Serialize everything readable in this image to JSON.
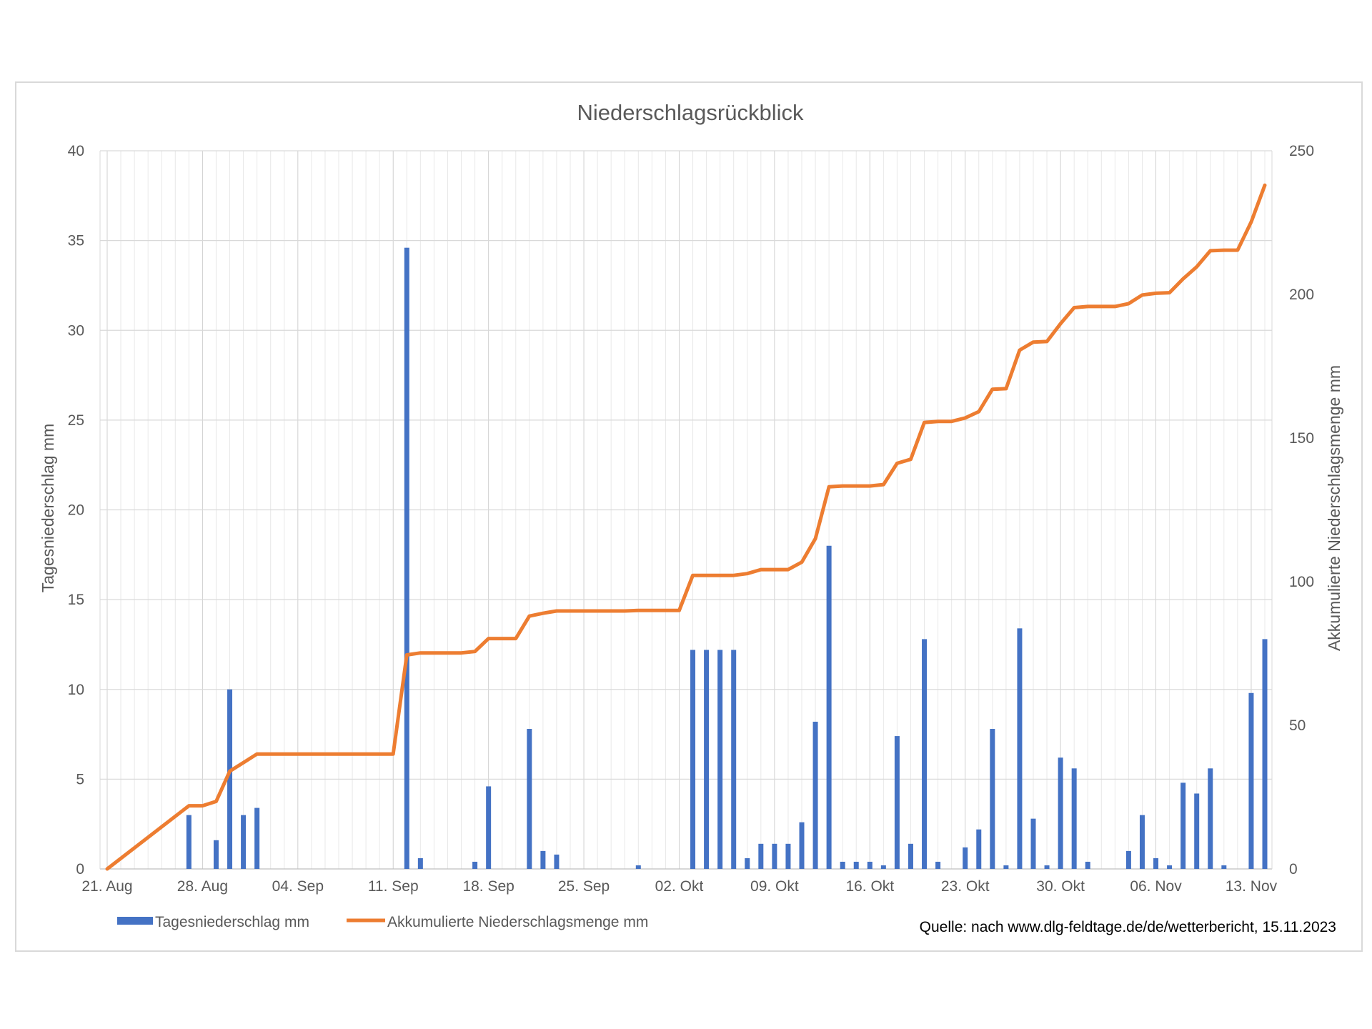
{
  "chart_data": {
    "type": "bar+line",
    "title": "Niederschlagsrückblick",
    "ylabel": "Tagesniederschlag mm",
    "y2label": "Akkumulierte Niederschlagsmenge mm",
    "ylim": [
      0,
      40
    ],
    "yticks": [
      0,
      5,
      10,
      15,
      20,
      25,
      30,
      35,
      40
    ],
    "y2lim": [
      0,
      250
    ],
    "y2ticks": [
      0,
      50,
      100,
      150,
      200,
      250
    ],
    "xlim": [
      "2023-08-21",
      "2023-11-15"
    ],
    "x_tick_dates": [
      "2023-08-21",
      "2023-08-28",
      "2023-09-04",
      "2023-09-11",
      "2023-09-18",
      "2023-09-25",
      "2023-10-02",
      "2023-10-09",
      "2023-10-16",
      "2023-10-23",
      "2023-10-30",
      "2023-11-06",
      "2023-11-13"
    ],
    "x_tick_labels": [
      "21. Aug",
      "28. Aug",
      "04. Sep",
      "11. Sep",
      "18. Sep",
      "25. Sep",
      "02. Okt",
      "09. Okt",
      "16. Okt",
      "23. Okt",
      "30. Okt",
      "06. Nov",
      "13. Nov"
    ],
    "grid": true,
    "legend": "bottom",
    "source_text": "Quelle: nach www.dlg-feldtage.de/de/wetterbericht, 15.11.2023",
    "series": [
      {
        "name": "Tagesniederschlag mm",
        "kind": "bar",
        "axis": "left",
        "color": "#4472c4",
        "points": [
          [
            "2023-08-27",
            3.0
          ],
          [
            "2023-08-29",
            1.6
          ],
          [
            "2023-08-30",
            10.0
          ],
          [
            "2023-08-31",
            3.0
          ],
          [
            "2023-09-01",
            3.4
          ],
          [
            "2023-09-12",
            34.6
          ],
          [
            "2023-09-13",
            0.6
          ],
          [
            "2023-09-17",
            0.4
          ],
          [
            "2023-09-18",
            4.6
          ],
          [
            "2023-09-21",
            7.8
          ],
          [
            "2023-09-22",
            1.0
          ],
          [
            "2023-09-23",
            0.8
          ],
          [
            "2023-09-29",
            0.2
          ],
          [
            "2023-10-03",
            12.2
          ],
          [
            "2023-10-04",
            12.2
          ],
          [
            "2023-10-05",
            12.2
          ],
          [
            "2023-10-06",
            12.2
          ],
          [
            "2023-10-07",
            0.6
          ],
          [
            "2023-10-08",
            1.4
          ],
          [
            "2023-10-09",
            1.4
          ],
          [
            "2023-10-10",
            1.4
          ],
          [
            "2023-10-11",
            2.6
          ],
          [
            "2023-10-12",
            8.2
          ],
          [
            "2023-10-13",
            18.0
          ],
          [
            "2023-10-14",
            0.4
          ],
          [
            "2023-10-15",
            0.4
          ],
          [
            "2023-10-16",
            0.4
          ],
          [
            "2023-10-17",
            0.2
          ],
          [
            "2023-10-18",
            7.4
          ],
          [
            "2023-10-19",
            1.4
          ],
          [
            "2023-10-20",
            12.8
          ],
          [
            "2023-10-21",
            0.4
          ],
          [
            "2023-10-23",
            1.2
          ],
          [
            "2023-10-24",
            2.2
          ],
          [
            "2023-10-25",
            7.8
          ],
          [
            "2023-10-26",
            0.2
          ],
          [
            "2023-10-27",
            13.4
          ],
          [
            "2023-10-28",
            2.8
          ],
          [
            "2023-10-29",
            0.2
          ],
          [
            "2023-10-30",
            6.2
          ],
          [
            "2023-10-31",
            5.6
          ],
          [
            "2023-11-01",
            0.4
          ],
          [
            "2023-11-04",
            1.0
          ],
          [
            "2023-11-05",
            3.0
          ],
          [
            "2023-11-06",
            0.6
          ],
          [
            "2023-11-07",
            0.2
          ],
          [
            "2023-11-08",
            4.8
          ],
          [
            "2023-11-09",
            4.2
          ],
          [
            "2023-11-10",
            5.6
          ],
          [
            "2023-11-11",
            0.2
          ],
          [
            "2023-11-13",
            9.8
          ],
          [
            "2023-11-14",
            12.8
          ]
        ]
      },
      {
        "name": "Akkumulierte Niederschlagsmenge mm",
        "kind": "line",
        "axis": "right",
        "color": "#ed7d31",
        "points": [
          [
            "2023-08-21",
            0
          ],
          [
            "2023-08-27",
            22
          ],
          [
            "2023-08-28",
            22
          ],
          [
            "2023-08-29",
            23.5
          ],
          [
            "2023-08-30",
            34
          ],
          [
            "2023-08-31",
            37
          ],
          [
            "2023-09-01",
            40
          ],
          [
            "2023-09-11",
            40
          ],
          [
            "2023-09-12",
            74.5
          ],
          [
            "2023-09-13",
            75.2
          ],
          [
            "2023-09-16",
            75.2
          ],
          [
            "2023-09-17",
            75.7
          ],
          [
            "2023-09-18",
            80.2
          ],
          [
            "2023-09-20",
            80.2
          ],
          [
            "2023-09-21",
            88
          ],
          [
            "2023-09-22",
            89
          ],
          [
            "2023-09-23",
            89.8
          ],
          [
            "2023-09-28",
            89.8
          ],
          [
            "2023-09-29",
            90
          ],
          [
            "2023-10-02",
            90
          ],
          [
            "2023-10-03",
            102.2
          ],
          [
            "2023-10-06",
            102.2
          ],
          [
            "2023-10-07",
            102.8
          ],
          [
            "2023-10-08",
            104.2
          ],
          [
            "2023-10-10",
            104.2
          ],
          [
            "2023-10-11",
            106.8
          ],
          [
            "2023-10-12",
            115
          ],
          [
            "2023-10-13",
            133
          ],
          [
            "2023-10-14",
            133.3
          ],
          [
            "2023-10-16",
            133.3
          ],
          [
            "2023-10-17",
            133.8
          ],
          [
            "2023-10-18",
            141.2
          ],
          [
            "2023-10-19",
            142.6
          ],
          [
            "2023-10-20",
            155.4
          ],
          [
            "2023-10-21",
            155.8
          ],
          [
            "2023-10-22",
            155.8
          ],
          [
            "2023-10-23",
            157
          ],
          [
            "2023-10-24",
            159.2
          ],
          [
            "2023-10-25",
            167
          ],
          [
            "2023-10-26",
            167.2
          ],
          [
            "2023-10-27",
            180.6
          ],
          [
            "2023-10-28",
            183.4
          ],
          [
            "2023-10-29",
            183.6
          ],
          [
            "2023-10-30",
            189.8
          ],
          [
            "2023-10-31",
            195.4
          ],
          [
            "2023-11-01",
            195.8
          ],
          [
            "2023-11-03",
            195.8
          ],
          [
            "2023-11-04",
            196.8
          ],
          [
            "2023-11-05",
            199.8
          ],
          [
            "2023-11-06",
            200.4
          ],
          [
            "2023-11-07",
            200.6
          ],
          [
            "2023-11-08",
            205.4
          ],
          [
            "2023-11-09",
            209.6
          ],
          [
            "2023-11-10",
            215.2
          ],
          [
            "2023-11-11",
            215.4
          ],
          [
            "2023-11-12",
            215.4
          ],
          [
            "2023-11-13",
            225.2
          ],
          [
            "2023-11-14",
            238
          ]
        ]
      }
    ]
  }
}
